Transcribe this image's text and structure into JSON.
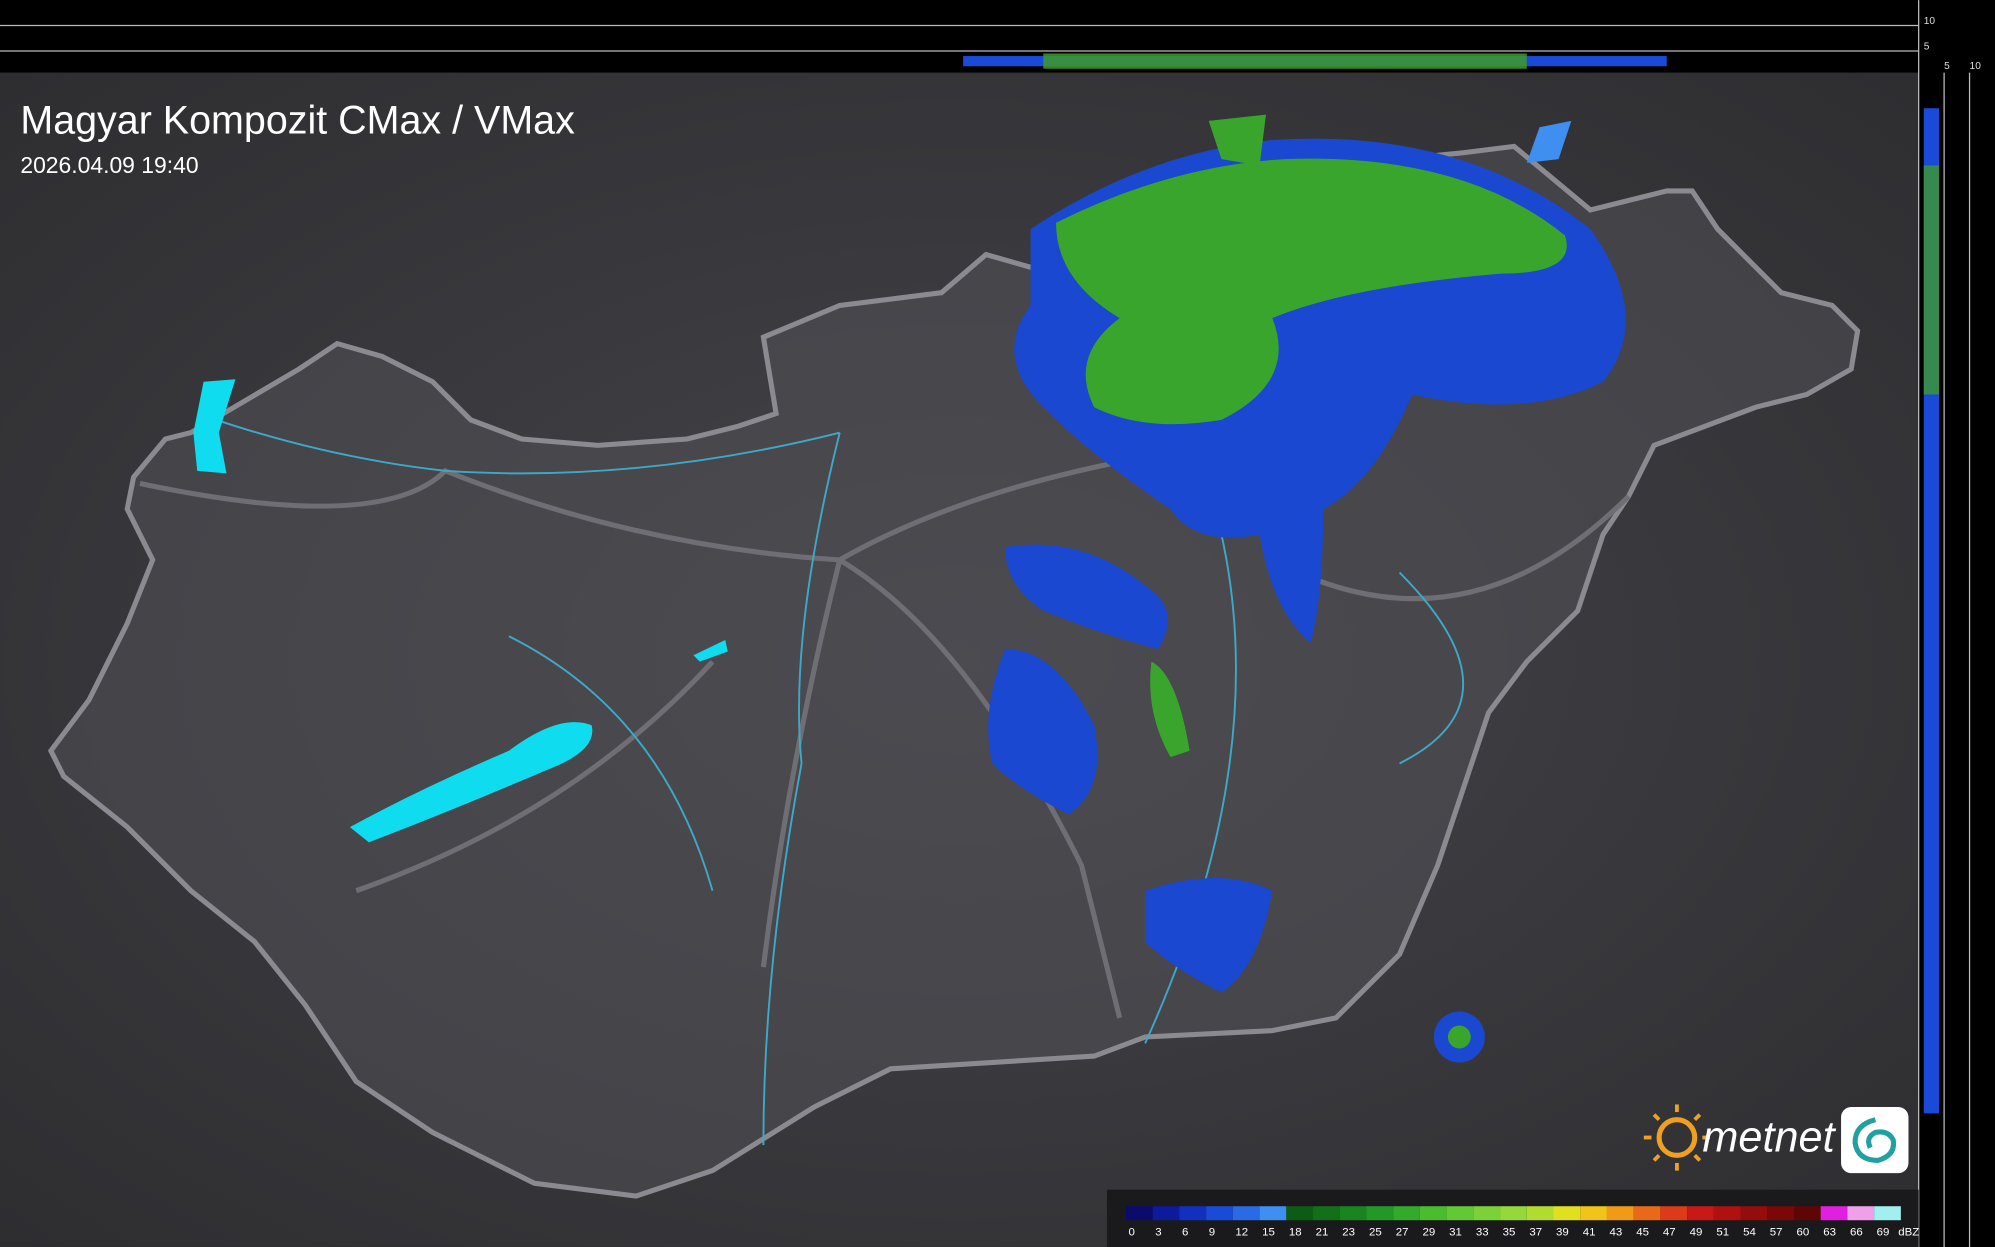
{
  "header": {
    "title": "Magyar Kompozit CMax / VMax",
    "timestamp": "2026.04.09 19:40"
  },
  "profile_axes": {
    "top_ticks": [
      10,
      5
    ],
    "right_ticks": [
      5,
      10
    ]
  },
  "legend": {
    "values": [
      0,
      3,
      6,
      9,
      12,
      15,
      18,
      21,
      23,
      25,
      27,
      29,
      31,
      33,
      35,
      37,
      39,
      41,
      43,
      45,
      47,
      49,
      51,
      54,
      57,
      60,
      63,
      66,
      69
    ],
    "unit": "dBZ",
    "colors": [
      "#0b0b6e",
      "#0d1a9a",
      "#1230c0",
      "#1a4ad8",
      "#2a6ae6",
      "#3e8ff0",
      "#0d5c14",
      "#137018",
      "#1a8420",
      "#249826",
      "#33aa2c",
      "#4abc30",
      "#62c834",
      "#7ad238",
      "#94d83a",
      "#b0dc30",
      "#e0e020",
      "#f0c418",
      "#f09a18",
      "#e86a18",
      "#dc3a18",
      "#c81818",
      "#b01010",
      "#940c0c",
      "#7a0808",
      "#5e0606",
      "#e020e0",
      "#f0a0e8",
      "#a0f0f0"
    ]
  },
  "logo": {
    "text": "metnet"
  }
}
